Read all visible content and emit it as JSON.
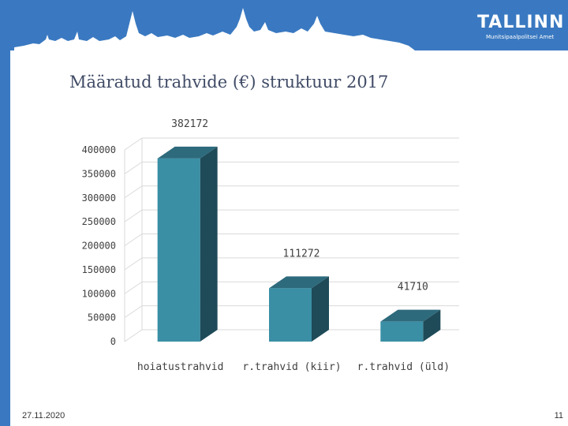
{
  "slide": {
    "title": "Määratud trahvide (€) struktuur 2017",
    "date": "27.11.2020",
    "page_number": "11"
  },
  "logo": {
    "word": "TALLINN",
    "subtitle": "Munitsipaalpolitsei Amet"
  },
  "colors": {
    "header": "#3a79c1",
    "bar_front": "#3a8fa5",
    "bar_side": "#1f4a58",
    "bar_top": "#2d6a7c"
  },
  "chart_data": {
    "type": "bar",
    "categories": [
      "hoiatustrahvid",
      "r.trahvid (kiir)",
      "r.trahvid (üld)"
    ],
    "values": [
      382172,
      111272,
      41710
    ],
    "data_labels": [
      "382172",
      "111272",
      "41710"
    ],
    "title": "Määratud trahvide (€) struktuur 2017",
    "ylim": [
      0,
      400000
    ],
    "yticks": [
      0,
      50000,
      100000,
      150000,
      200000,
      250000,
      300000,
      350000,
      400000
    ],
    "ytick_labels": [
      "0",
      "50000",
      "100000",
      "150000",
      "200000",
      "250000",
      "300000",
      "350000",
      "400000"
    ],
    "grid": true,
    "style": "3d-column"
  }
}
